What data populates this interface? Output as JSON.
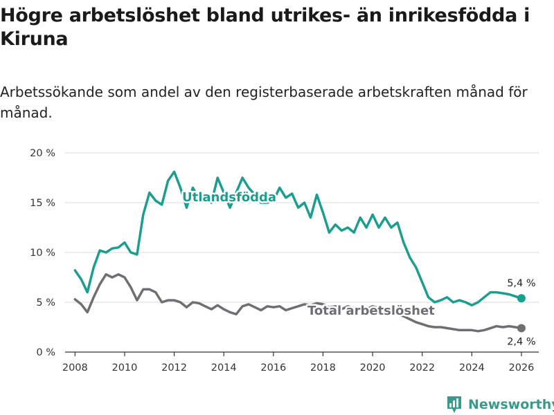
{
  "header": {
    "title": "Högre arbetslöshet bland utrikes- än inrikesfödda i Kiruna",
    "subtitle": "Arbetssökande som andel av den registerbaserade arbetskraften månad för månad."
  },
  "brand": {
    "name": "Newsworthy",
    "color": "#3a9a8a"
  },
  "chart_data": {
    "type": "line",
    "title": "Högre arbetslöshet bland utrikes- än inrikesfödda i Kiruna",
    "xlabel": "",
    "ylabel": "",
    "xlim": [
      2007.6,
      2026.7
    ],
    "ylim": [
      0,
      20
    ],
    "x_ticks": [
      2008,
      2010,
      2012,
      2014,
      2016,
      2018,
      2020,
      2022,
      2024,
      2026
    ],
    "x_tick_labels": [
      "2008",
      "2010",
      "2012",
      "2014",
      "2016",
      "2018",
      "2020",
      "2022",
      "2024",
      "2026"
    ],
    "y_ticks": [
      0,
      5,
      10,
      15,
      20
    ],
    "y_tick_labels": [
      "0 %",
      "5 %",
      "10 %",
      "15 %",
      "20 %"
    ],
    "grid": true,
    "series": [
      {
        "name": "Utlandsfödda",
        "color": "#1a9e8e",
        "end_value_label": "5,4 %",
        "points": [
          [
            2008.0,
            8.2
          ],
          [
            2008.25,
            7.3
          ],
          [
            2008.5,
            6.0
          ],
          [
            2008.75,
            8.5
          ],
          [
            2009.0,
            10.2
          ],
          [
            2009.25,
            10.0
          ],
          [
            2009.5,
            10.4
          ],
          [
            2009.75,
            10.5
          ],
          [
            2010.0,
            11.0
          ],
          [
            2010.25,
            10.0
          ],
          [
            2010.5,
            9.8
          ],
          [
            2010.75,
            13.8
          ],
          [
            2011.0,
            16.0
          ],
          [
            2011.25,
            15.2
          ],
          [
            2011.5,
            14.8
          ],
          [
            2011.75,
            17.2
          ],
          [
            2012.0,
            18.1
          ],
          [
            2012.25,
            16.5
          ],
          [
            2012.5,
            14.5
          ],
          [
            2012.75,
            16.5
          ],
          [
            2013.0,
            15.4
          ],
          [
            2013.25,
            15.5
          ],
          [
            2013.5,
            15.0
          ],
          [
            2013.75,
            17.5
          ],
          [
            2014.0,
            16.0
          ],
          [
            2014.25,
            14.5
          ],
          [
            2014.5,
            16.0
          ],
          [
            2014.75,
            17.5
          ],
          [
            2015.0,
            16.5
          ],
          [
            2015.25,
            15.8
          ],
          [
            2015.5,
            15.0
          ],
          [
            2015.75,
            15.0
          ],
          [
            2016.0,
            15.2
          ],
          [
            2016.25,
            16.5
          ],
          [
            2016.5,
            15.5
          ],
          [
            2016.75,
            15.9
          ],
          [
            2017.0,
            14.5
          ],
          [
            2017.25,
            15.0
          ],
          [
            2017.5,
            13.5
          ],
          [
            2017.75,
            15.8
          ],
          [
            2018.0,
            14.0
          ],
          [
            2018.25,
            12.0
          ],
          [
            2018.5,
            12.8
          ],
          [
            2018.75,
            12.2
          ],
          [
            2019.0,
            12.5
          ],
          [
            2019.25,
            12.0
          ],
          [
            2019.5,
            13.5
          ],
          [
            2019.75,
            12.5
          ],
          [
            2020.0,
            13.8
          ],
          [
            2020.25,
            12.5
          ],
          [
            2020.5,
            13.5
          ],
          [
            2020.75,
            12.5
          ],
          [
            2021.0,
            13.0
          ],
          [
            2021.25,
            11.0
          ],
          [
            2021.5,
            9.5
          ],
          [
            2021.75,
            8.5
          ],
          [
            2022.0,
            7.0
          ],
          [
            2022.25,
            5.5
          ],
          [
            2022.5,
            5.0
          ],
          [
            2022.75,
            5.2
          ],
          [
            2023.0,
            5.5
          ],
          [
            2023.25,
            5.0
          ],
          [
            2023.5,
            5.2
          ],
          [
            2023.75,
            5.0
          ],
          [
            2024.0,
            4.7
          ],
          [
            2024.25,
            5.0
          ],
          [
            2024.5,
            5.5
          ],
          [
            2024.75,
            6.0
          ],
          [
            2025.0,
            6.0
          ],
          [
            2025.25,
            5.9
          ],
          [
            2025.5,
            5.8
          ],
          [
            2025.75,
            5.6
          ],
          [
            2026.0,
            5.4
          ]
        ]
      },
      {
        "name": "Total arbetslöshet",
        "color": "#6e6e73",
        "end_value_label": "2,4 %",
        "points": [
          [
            2008.0,
            5.3
          ],
          [
            2008.25,
            4.8
          ],
          [
            2008.5,
            4.0
          ],
          [
            2008.75,
            5.5
          ],
          [
            2009.0,
            6.8
          ],
          [
            2009.25,
            7.8
          ],
          [
            2009.5,
            7.5
          ],
          [
            2009.75,
            7.8
          ],
          [
            2010.0,
            7.5
          ],
          [
            2010.25,
            6.5
          ],
          [
            2010.5,
            5.2
          ],
          [
            2010.75,
            6.3
          ],
          [
            2011.0,
            6.3
          ],
          [
            2011.25,
            6.0
          ],
          [
            2011.5,
            5.0
          ],
          [
            2011.75,
            5.2
          ],
          [
            2012.0,
            5.2
          ],
          [
            2012.25,
            5.0
          ],
          [
            2012.5,
            4.5
          ],
          [
            2012.75,
            5.0
          ],
          [
            2013.0,
            4.9
          ],
          [
            2013.25,
            4.6
          ],
          [
            2013.5,
            4.3
          ],
          [
            2013.75,
            4.7
          ],
          [
            2014.0,
            4.3
          ],
          [
            2014.25,
            4.0
          ],
          [
            2014.5,
            3.8
          ],
          [
            2014.75,
            4.6
          ],
          [
            2015.0,
            4.8
          ],
          [
            2015.25,
            4.5
          ],
          [
            2015.5,
            4.2
          ],
          [
            2015.75,
            4.6
          ],
          [
            2016.0,
            4.5
          ],
          [
            2016.25,
            4.6
          ],
          [
            2016.5,
            4.2
          ],
          [
            2016.75,
            4.4
          ],
          [
            2017.0,
            4.6
          ],
          [
            2017.25,
            4.8
          ],
          [
            2017.5,
            4.7
          ],
          [
            2017.75,
            4.9
          ],
          [
            2018.0,
            4.8
          ],
          [
            2018.25,
            4.5
          ],
          [
            2018.5,
            4.6
          ],
          [
            2018.75,
            4.3
          ],
          [
            2019.0,
            4.6
          ],
          [
            2019.25,
            4.4
          ],
          [
            2019.5,
            4.5
          ],
          [
            2019.75,
            4.3
          ],
          [
            2020.0,
            4.6
          ],
          [
            2020.25,
            4.4
          ],
          [
            2020.5,
            4.3
          ],
          [
            2020.75,
            4.0
          ],
          [
            2021.0,
            3.8
          ],
          [
            2021.25,
            3.6
          ],
          [
            2021.5,
            3.3
          ],
          [
            2021.75,
            3.0
          ],
          [
            2022.0,
            2.8
          ],
          [
            2022.25,
            2.6
          ],
          [
            2022.5,
            2.5
          ],
          [
            2022.75,
            2.5
          ],
          [
            2023.0,
            2.4
          ],
          [
            2023.25,
            2.3
          ],
          [
            2023.5,
            2.2
          ],
          [
            2023.75,
            2.2
          ],
          [
            2024.0,
            2.2
          ],
          [
            2024.25,
            2.1
          ],
          [
            2024.5,
            2.2
          ],
          [
            2024.75,
            2.4
          ],
          [
            2025.0,
            2.6
          ],
          [
            2025.25,
            2.5
          ],
          [
            2025.5,
            2.6
          ],
          [
            2025.75,
            2.5
          ],
          [
            2026.0,
            2.4
          ]
        ]
      }
    ]
  }
}
